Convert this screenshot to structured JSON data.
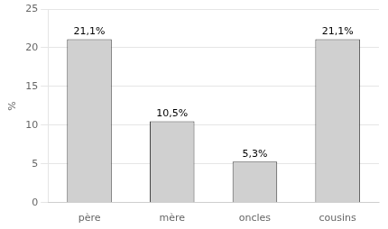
{
  "chart_data": {
    "type": "bar",
    "categories": [
      "père",
      "mère",
      "oncles",
      "cousins"
    ],
    "values": [
      21.1,
      10.5,
      5.3,
      21.1
    ],
    "value_labels": [
      "21,1%",
      "10,5%",
      "5,3%",
      "21,1%"
    ],
    "data_labels": true,
    "color": "#d0d0d0",
    "ylabel": "%",
    "ylim": [
      0,
      25
    ],
    "yticks": [
      0,
      5,
      10,
      15,
      20,
      25
    ],
    "grid": true
  }
}
